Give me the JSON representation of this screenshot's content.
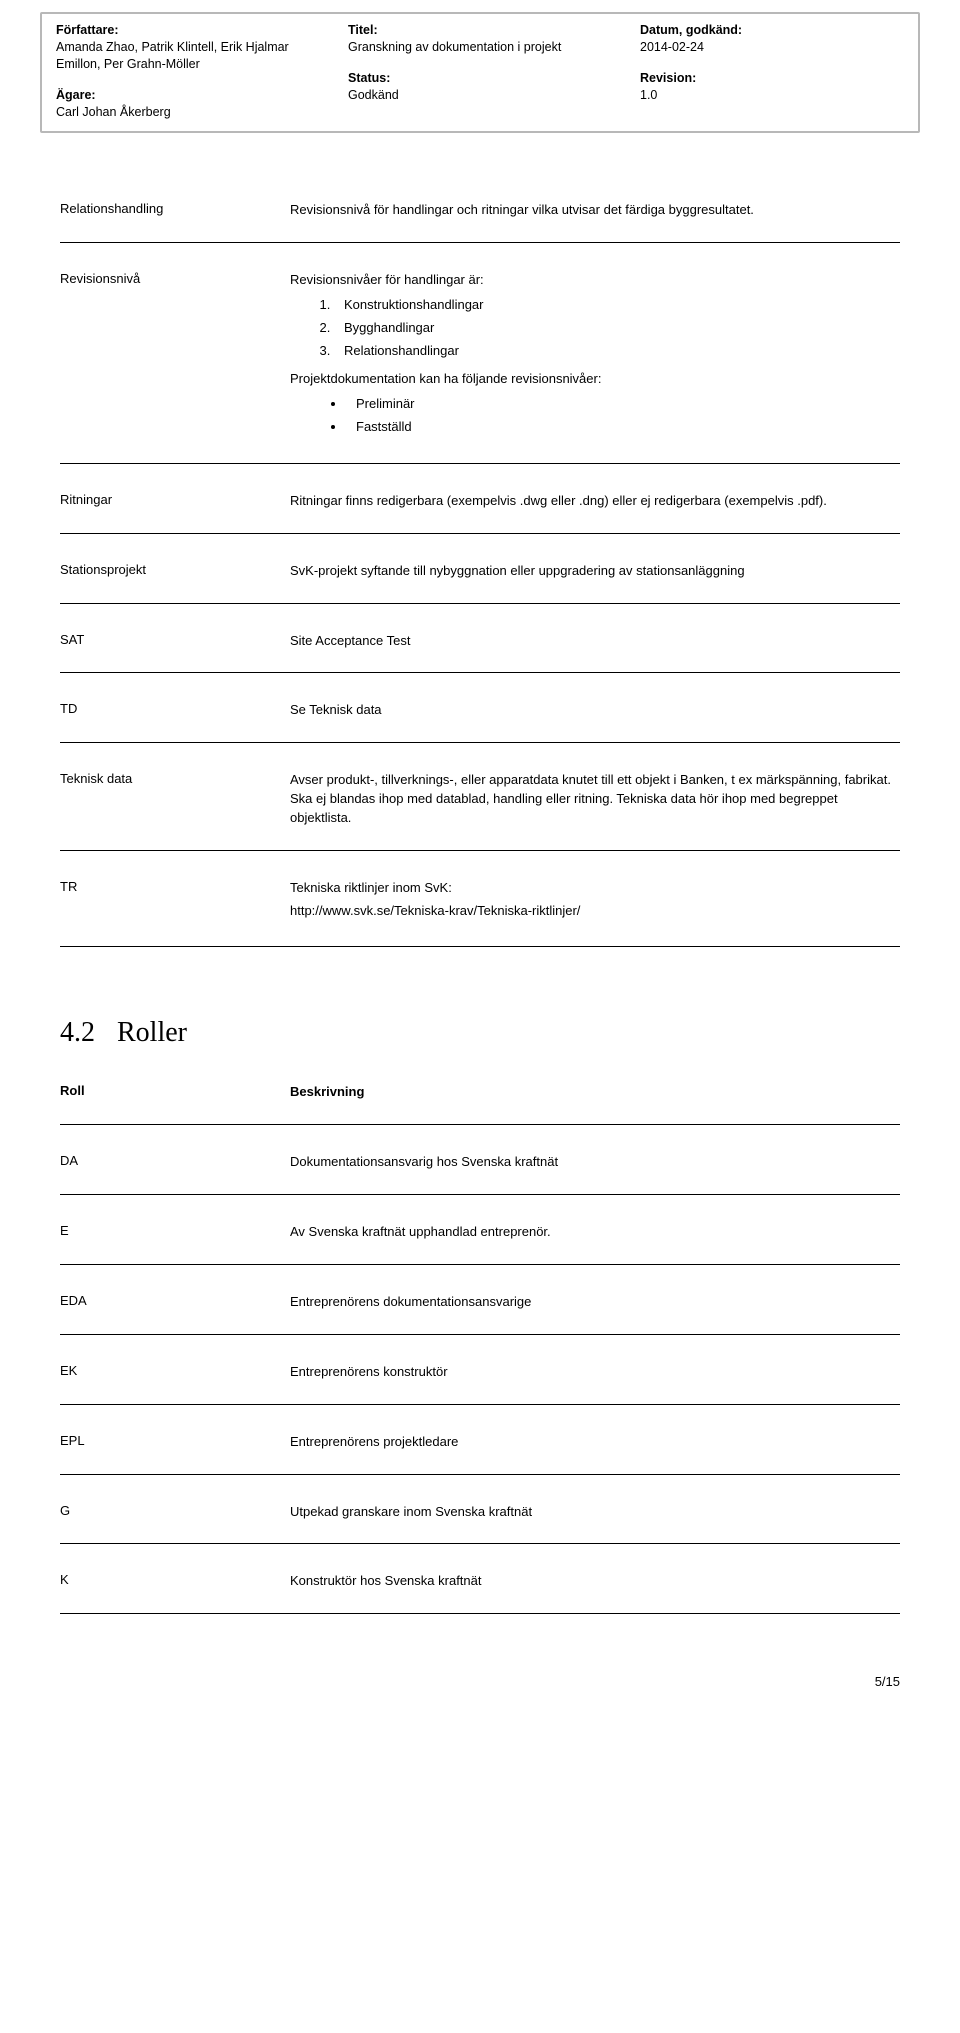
{
  "header": {
    "col1": {
      "label1": "Författare:",
      "value1": "Amanda Zhao, Patrik Klintell, Erik Hjalmar Emillon, Per Grahn-Möller",
      "label2": "Ägare:",
      "value2": "Carl Johan Åkerberg"
    },
    "col2": {
      "label1": "Titel:",
      "value1": "Granskning av dokumentation i projekt",
      "label2": "Status:",
      "value2": "Godkänd"
    },
    "col3": {
      "label1": "Datum, godkänd:",
      "value1": "2014-02-24",
      "label2": "Revision:",
      "value2": "1.0"
    }
  },
  "defs1": [
    {
      "term": "Relationshandling",
      "desc_plain": "Revisionsnivå för handlingar och ritningar vilka utvisar det färdiga byggresultatet."
    },
    {
      "term": "Revisionsnivå",
      "desc_intro": "Revisionsnivåer för handlingar är:",
      "ol": [
        "Konstruktionshandlingar",
        "Bygghandlingar",
        "Relationshandlingar"
      ],
      "desc_mid": "Projektdokumentation kan ha följande revisionsnivåer:",
      "ul": [
        "Preliminär",
        "Fastställd"
      ]
    },
    {
      "term": "Ritningar",
      "desc_plain": "Ritningar finns redigerbara (exempelvis .dwg eller .dng) eller ej redigerbara (exempelvis .pdf)."
    },
    {
      "term": "Stationsprojekt",
      "desc_plain": "SvK-projekt syftande till nybyggnation eller uppgradering av stationsanläggning"
    },
    {
      "term": "SAT",
      "desc_plain": "Site Acceptance Test"
    },
    {
      "term": "TD",
      "desc_plain": "Se Teknisk data"
    },
    {
      "term": "Teknisk data",
      "desc_plain": "Avser produkt-, tillverknings-, eller apparatdata knutet till ett objekt i Banken, t ex märkspänning, fabrikat. Ska ej blandas ihop med datablad, handling eller ritning.  Tekniska data hör ihop med begreppet objektlista."
    },
    {
      "term": "TR",
      "desc_line1": "Tekniska riktlinjer inom SvK:",
      "desc_line2": "http://www.svk.se/Tekniska-krav/Tekniska-riktlinjer/"
    }
  ],
  "section": {
    "num": "4.2",
    "title": "Roller"
  },
  "defs2_header": {
    "term": "Roll",
    "desc": "Beskrivning"
  },
  "defs2": [
    {
      "term": "DA",
      "desc": "Dokumentationsansvarig hos Svenska kraftnät"
    },
    {
      "term": "E",
      "desc": "Av Svenska kraftnät upphandlad entreprenör."
    },
    {
      "term": "EDA",
      "desc": "Entreprenörens dokumentationsansvarige"
    },
    {
      "term": "EK",
      "desc": "Entreprenörens konstruktör"
    },
    {
      "term": "EPL",
      "desc": "Entreprenörens projektledare"
    },
    {
      "term": "G",
      "desc": "Utpekad granskare inom Svenska kraftnät"
    },
    {
      "term": "K",
      "desc": "Konstruktör hos Svenska kraftnät"
    }
  ],
  "footer": "5/15"
}
